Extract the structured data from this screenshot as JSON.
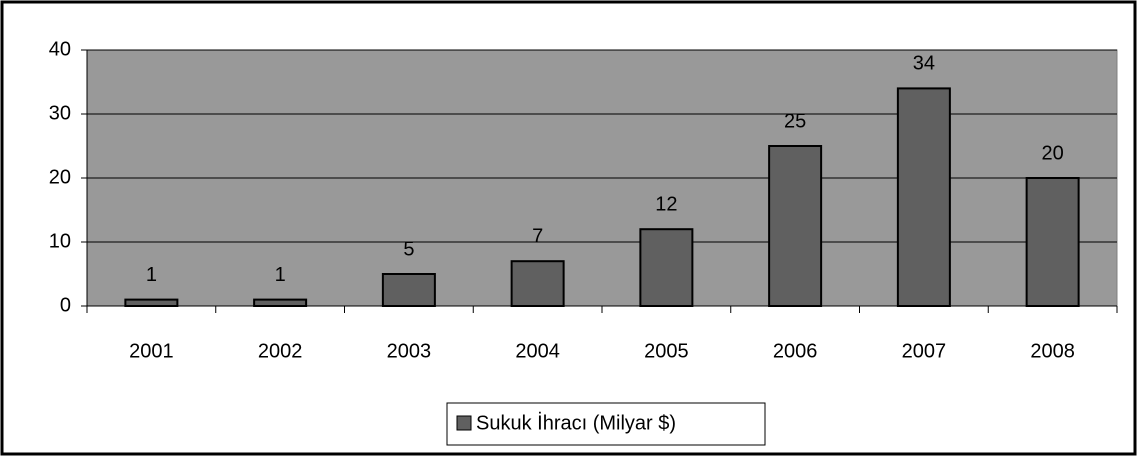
{
  "chart_data": {
    "type": "bar",
    "categories": [
      "2001",
      "2002",
      "2003",
      "2004",
      "2005",
      "2006",
      "2007",
      "2008"
    ],
    "series": [
      {
        "name": "Sukuk İhracı (Milyar $)",
        "color": "#606060",
        "values": [
          1,
          1,
          5,
          7,
          12,
          25,
          34,
          20
        ]
      }
    ],
    "ylim": [
      0,
      40
    ],
    "yticks": [
      0,
      10,
      20,
      30,
      40
    ],
    "grid": true,
    "legend": "bottom"
  }
}
